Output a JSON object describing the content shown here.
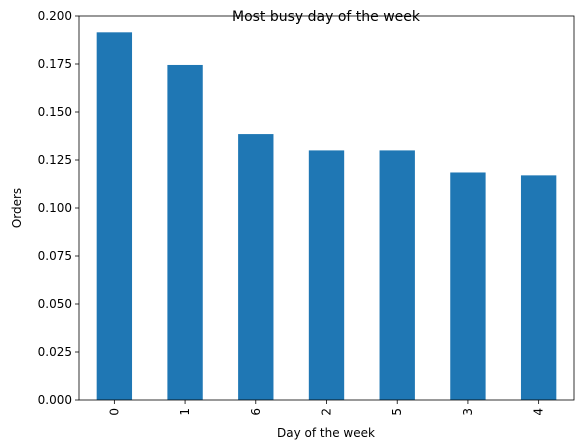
{
  "chart_data": {
    "type": "bar",
    "title": "Most busy day of the week",
    "xlabel": "Day of the week",
    "ylabel": "Orders",
    "categories": [
      "0",
      "1",
      "6",
      "2",
      "5",
      "3",
      "4"
    ],
    "values": [
      0.1915,
      0.1745,
      0.1385,
      0.13,
      0.13,
      0.1185,
      0.117
    ],
    "ylim": [
      0,
      0.2
    ],
    "yticks": [
      "0.000",
      "0.025",
      "0.050",
      "0.075",
      "0.100",
      "0.125",
      "0.150",
      "0.175",
      "0.200"
    ],
    "grid": false,
    "legend": "none",
    "bar_color": "#1f77b4",
    "xtick_rotation": "vertical"
  }
}
